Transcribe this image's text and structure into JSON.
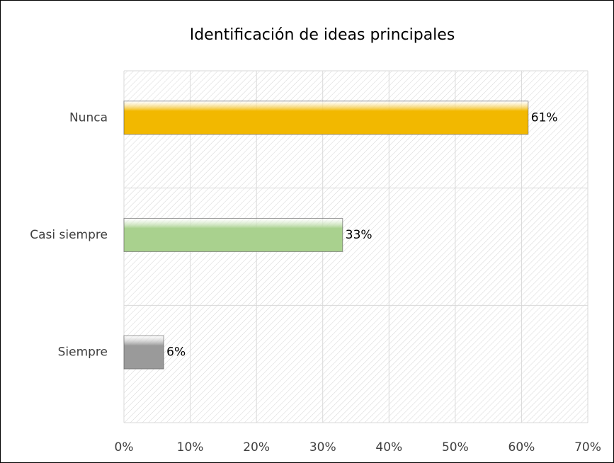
{
  "chart_data": {
    "type": "barh",
    "title": "Identificación de ideas principales",
    "categories": [
      "Nunca",
      "Casi siempre",
      "Siempre"
    ],
    "values": [
      61,
      33,
      6
    ],
    "value_labels": [
      "61%",
      "33%",
      "6%"
    ],
    "colors": [
      "#f2b800",
      "#a9d18e",
      "#9a9a9a"
    ],
    "xlim": [
      0,
      70
    ],
    "xticks": [
      {
        "value": 0,
        "label": "0%"
      },
      {
        "value": 10,
        "label": "10%"
      },
      {
        "value": 20,
        "label": "20%"
      },
      {
        "value": 30,
        "label": "30%"
      },
      {
        "value": 40,
        "label": "40%"
      },
      {
        "value": 50,
        "label": "50%"
      },
      {
        "value": 60,
        "label": "60%"
      },
      {
        "value": 70,
        "label": "70%"
      }
    ],
    "grid": true
  }
}
